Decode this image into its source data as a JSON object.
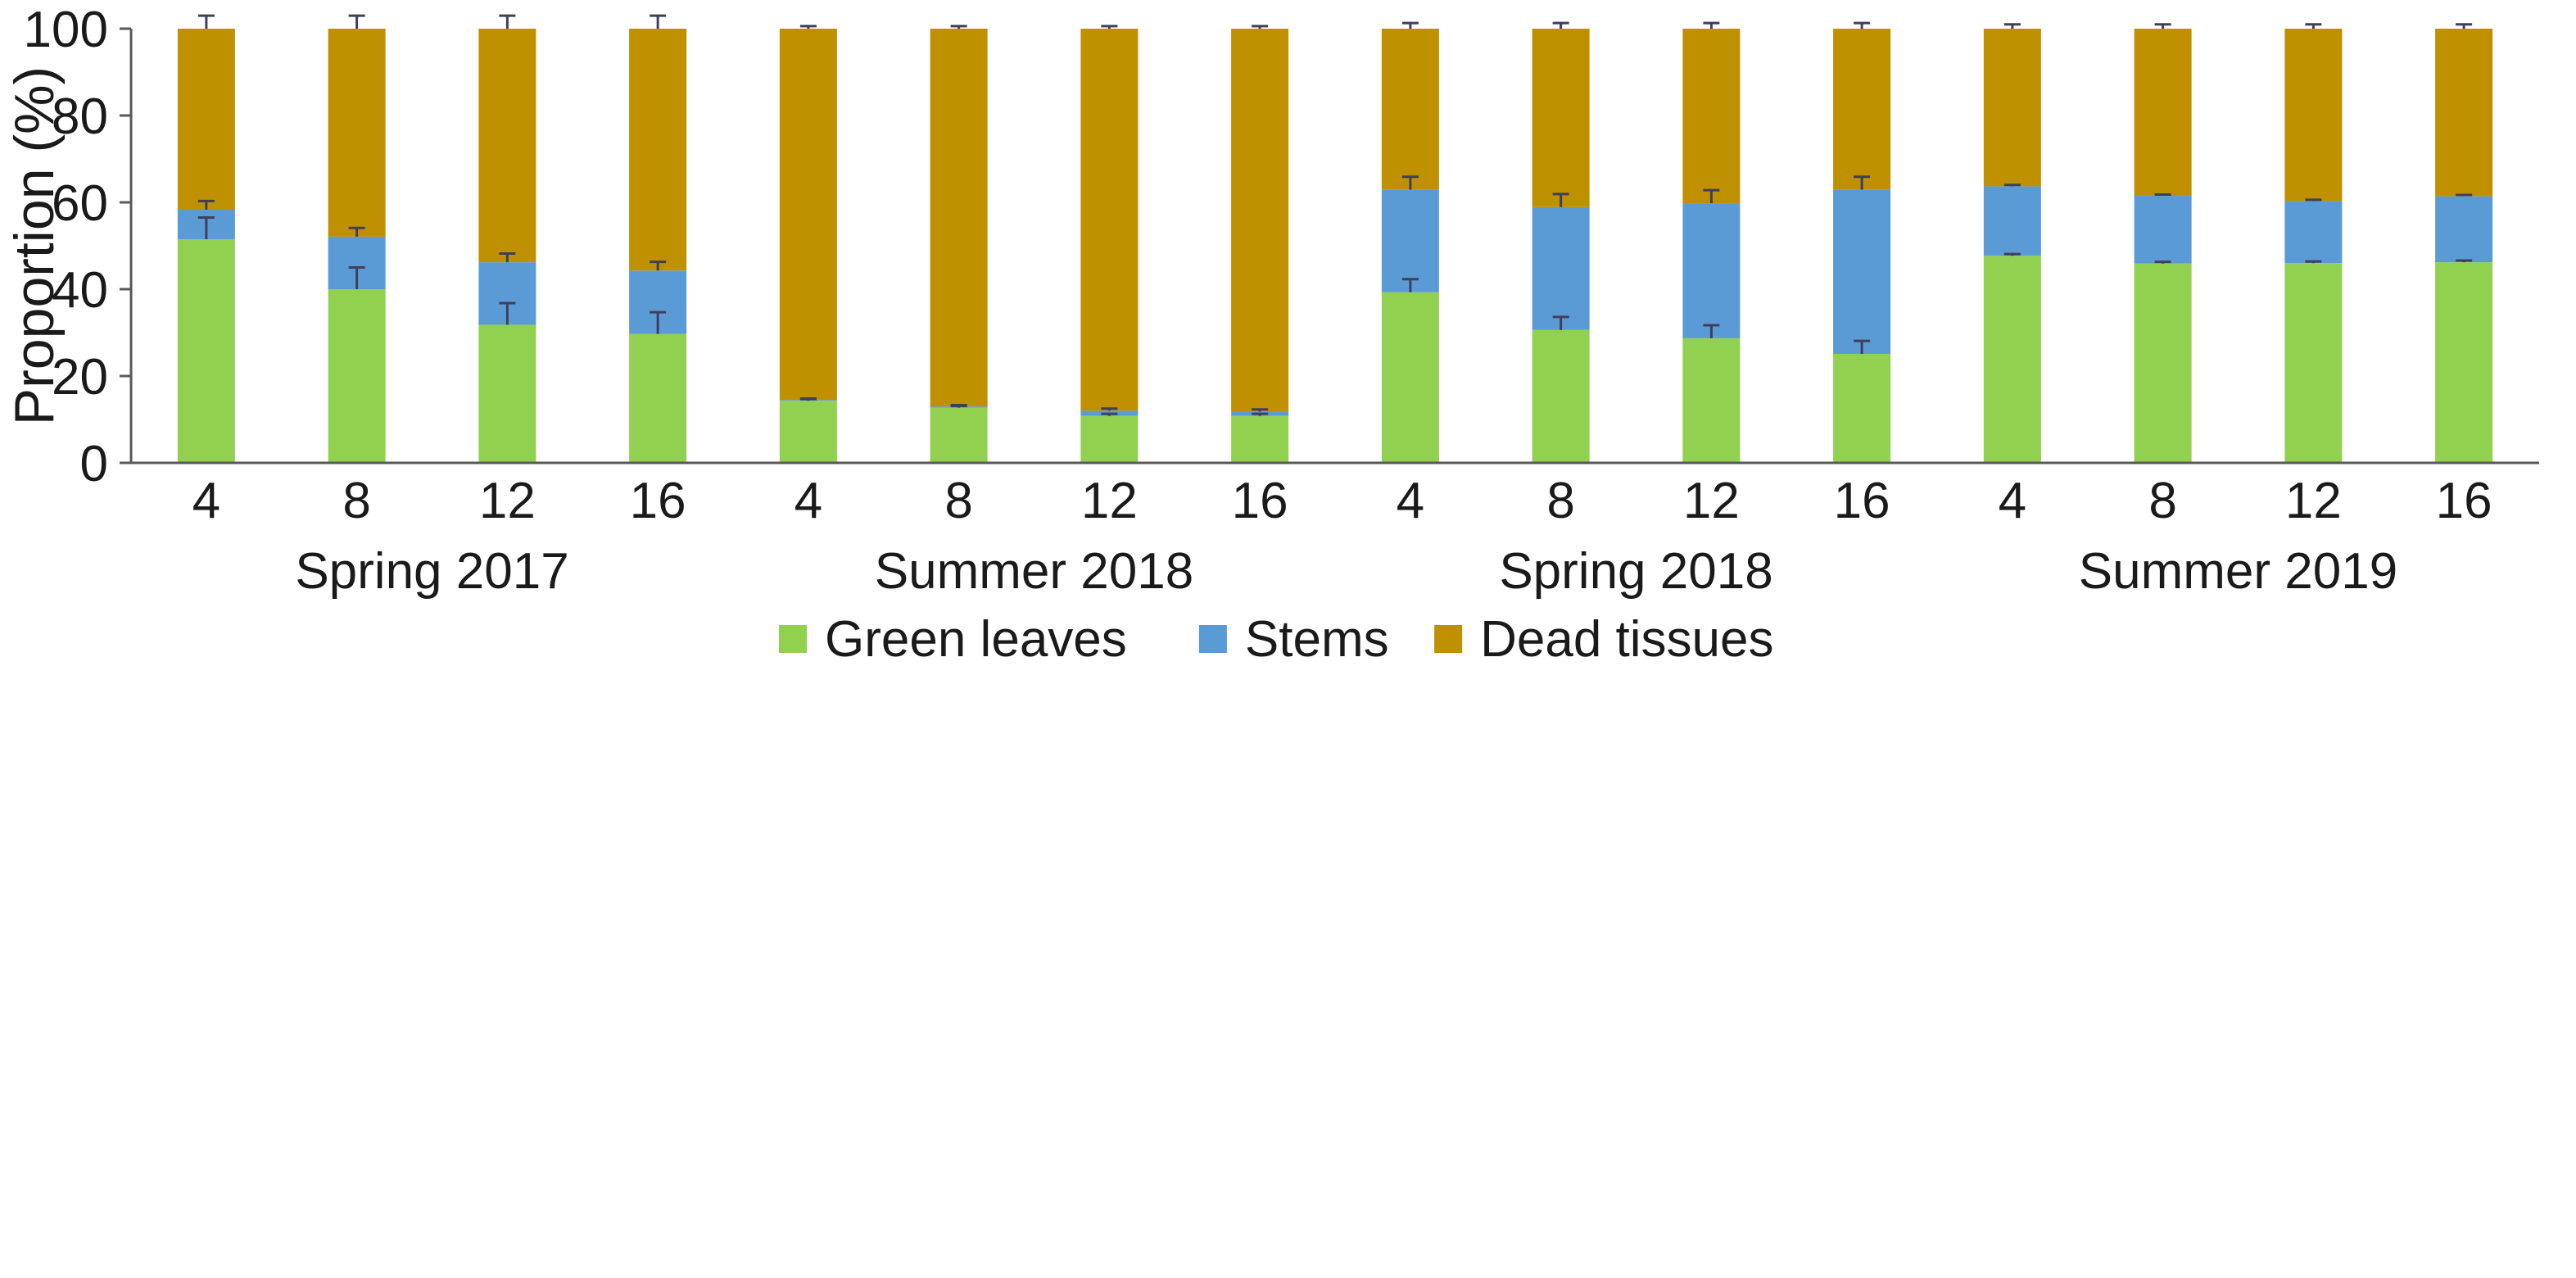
{
  "chart_data": {
    "type": "bar",
    "stacked": true,
    "ylabel": "Proportion (%)",
    "ylim": [
      0,
      100
    ],
    "yticks": [
      0,
      20,
      40,
      60,
      80,
      100
    ],
    "categories": [
      "4",
      "8",
      "12",
      "16",
      "4",
      "8",
      "12",
      "16",
      "4",
      "8",
      "12",
      "16",
      "4",
      "8",
      "12",
      "16"
    ],
    "groups": [
      {
        "label": "Spring 2017",
        "start": 0,
        "end": 3
      },
      {
        "label": "Summer 2018",
        "start": 4,
        "end": 7
      },
      {
        "label": "Spring 2018",
        "start": 8,
        "end": 11
      },
      {
        "label": "Summer 2019",
        "start": 12,
        "end": 15
      }
    ],
    "series": [
      {
        "name": "Green leaves",
        "color": "#92d050",
        "values": [
          51.5,
          40,
          31.8,
          29.7,
          14.3,
          12.7,
          10.8,
          10.8,
          39.3,
          30.6,
          28.7,
          25.1,
          47.7,
          45.9,
          46,
          46.2
        ],
        "errors": [
          5,
          5,
          5,
          5,
          0.4,
          0.4,
          0.5,
          0.5,
          3,
          3,
          3,
          3,
          0.4,
          0.4,
          0.4,
          0.4
        ]
      },
      {
        "name": "Stems",
        "color": "#5b9bd5",
        "values": [
          6.8,
          12.1,
          14.4,
          14.6,
          0.2,
          0.3,
          1.2,
          1,
          23.6,
          28.3,
          31.1,
          37.8,
          16,
          15.6,
          14.3,
          15.2
        ],
        "errors": [
          2,
          2,
          2,
          2,
          0.3,
          0.3,
          0.5,
          0.5,
          3,
          3,
          3,
          3,
          0.3,
          0.3,
          0.3,
          0.3
        ]
      },
      {
        "name": "Dead tissues",
        "color": "#bf9000",
        "values": [
          41.7,
          47.9,
          53.8,
          55.7,
          85.5,
          87,
          88,
          88.2,
          37.1,
          41.1,
          40.2,
          37.1,
          36.3,
          38.5,
          39.7,
          38.6
        ],
        "errors": [
          3,
          3,
          3,
          3,
          0.6,
          0.6,
          0.6,
          0.6,
          1.3,
          1.3,
          1.3,
          1.3,
          1,
          1,
          1,
          1
        ]
      }
    ],
    "legend_position": "bottom"
  },
  "colors": {
    "axis": "#595959",
    "error_bar": "#3f3f5a"
  }
}
